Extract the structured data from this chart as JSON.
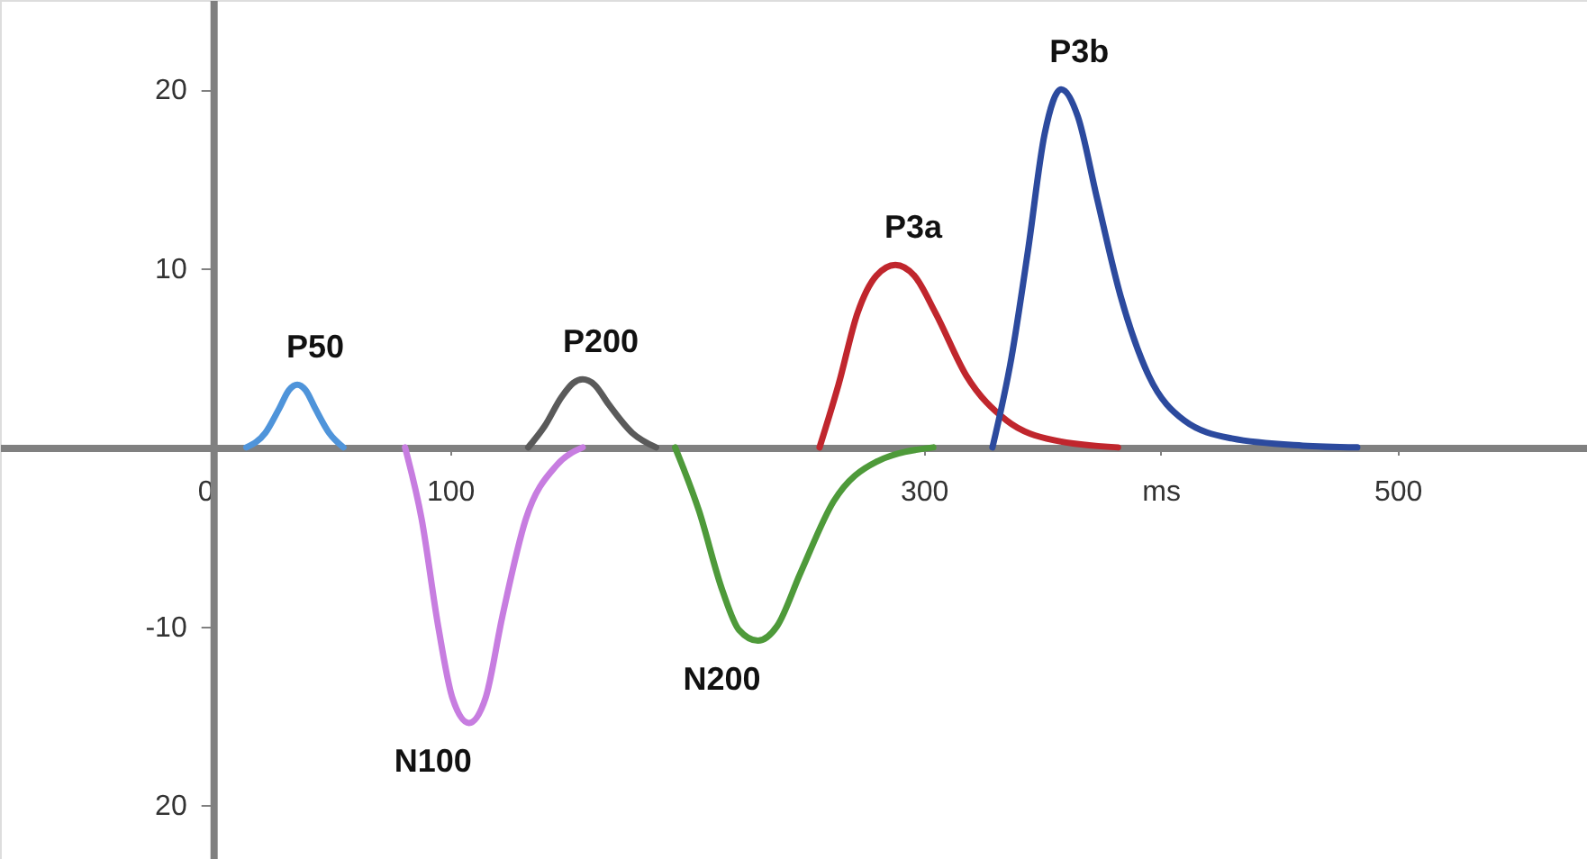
{
  "chart_data": {
    "type": "line",
    "xlim": [
      -90,
      580
    ],
    "ylim": [
      -23,
      25
    ],
    "xticks": [
      {
        "value": 0,
        "label": "0"
      },
      100,
      300,
      {
        "value": 400,
        "label": "ms"
      },
      500
    ],
    "yticks": [
      20,
      10,
      -10,
      {
        "value": -20,
        "label": "20"
      }
    ],
    "grid": false,
    "line_style": "solid",
    "marker": "none",
    "series": [
      {
        "name": "P50",
        "color": "#4f94da",
        "x": [
          14,
          22,
          28,
          32,
          35.5,
          39,
          43,
          49,
          55
        ],
        "values": [
          0,
          0.8,
          2.2,
          3.2,
          3.5,
          3.2,
          2.2,
          0.8,
          0
        ]
      },
      {
        "name": "N100",
        "color": "#c77de0",
        "x": [
          81,
          88,
          95,
          101,
          108,
          115,
          122,
          132,
          145,
          156
        ],
        "values": [
          0,
          -4,
          -10,
          -14,
          -15.4,
          -14,
          -9.5,
          -4,
          -1,
          0
        ]
      },
      {
        "name": "P200",
        "color": "#5a5a5a",
        "x": [
          133,
          140,
          147,
          152,
          156,
          161,
          167,
          177,
          187
        ],
        "values": [
          0,
          1.2,
          2.8,
          3.6,
          3.8,
          3.5,
          2.4,
          0.8,
          0
        ]
      },
      {
        "name": "N200",
        "color": "#4e9a3a",
        "x": [
          195,
          205,
          215,
          222,
          230,
          238,
          248,
          262,
          280,
          304
        ],
        "values": [
          0,
          -3.5,
          -8,
          -10.2,
          -10.8,
          -10,
          -7,
          -3,
          -0.8,
          0
        ]
      },
      {
        "name": "P3a",
        "color": "#c0262d",
        "x": [
          256,
          264,
          272,
          280,
          288,
          296,
          305,
          318,
          335,
          355,
          382
        ],
        "values": [
          0,
          3.5,
          7.5,
          9.6,
          10.2,
          9.6,
          7.5,
          4,
          1.5,
          0.4,
          0
        ]
      },
      {
        "name": "P3b",
        "color": "#2c4a9e",
        "x": [
          329,
          337,
          344,
          351,
          358,
          365,
          373,
          383,
          395,
          410,
          430,
          460,
          483
        ],
        "values": [
          0,
          5,
          11,
          17.5,
          20,
          18.5,
          14,
          8.5,
          4,
          1.5,
          0.5,
          0.1,
          0
        ]
      }
    ]
  }
}
